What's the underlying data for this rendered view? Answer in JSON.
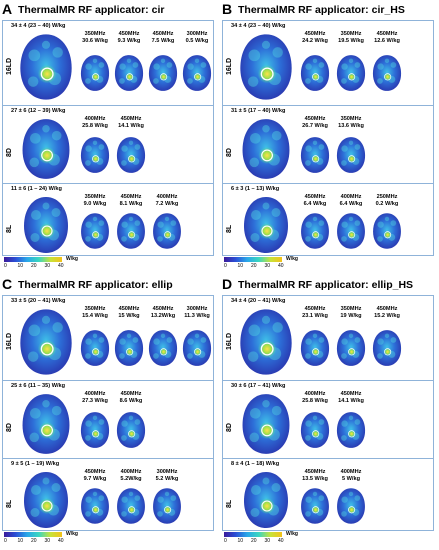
{
  "colorbar": {
    "ticks": [
      "0",
      "10",
      "20",
      "30",
      "40"
    ],
    "unit": "W/kg"
  },
  "panels": [
    {
      "letter": "A",
      "title": "ThermalMR RF applicator: cir",
      "rows": [
        {
          "label": "16LD",
          "main": "34 ± 4 (23 – 40) W/kg",
          "subs": [
            {
              "freq": "350MHz",
              "val": "30.6 W/kg"
            },
            {
              "freq": "450MHz",
              "val": "9.3 W/kg"
            },
            {
              "freq": "450MHz",
              "val": "7.5 W/kg"
            },
            {
              "freq": "300MHz",
              "val": "0.5 W/kg"
            }
          ]
        },
        {
          "label": "8D",
          "main": "27 ± 6 (12 – 39) W/kg",
          "subs": [
            {
              "freq": "400MHz",
              "val": "25.8 W/kg"
            },
            {
              "freq": "450MHz",
              "val": "14.1 W/kg"
            }
          ]
        },
        {
          "label": "8L",
          "main": "11 ± 6 (1 – 24) W/kg",
          "subs": [
            {
              "freq": "350MHz",
              "val": "9.0 W/kg"
            },
            {
              "freq": "450MHz",
              "val": "8.1 W/kg"
            },
            {
              "freq": "400MHz",
              "val": "7.2 W/kg"
            }
          ]
        }
      ]
    },
    {
      "letter": "B",
      "title": "ThermalMR RF applicator: cir_HS",
      "rows": [
        {
          "label": "16LD",
          "main": "34 ± 4 (23 – 40) W/kg",
          "subs": [
            {
              "freq": "450MHz",
              "val": "24.2 W/kg"
            },
            {
              "freq": "350MHz",
              "val": "19.5 W/kg"
            },
            {
              "freq": "450MHz",
              "val": "12.6 W/kg"
            }
          ]
        },
        {
          "label": "8D",
          "main": "31 ± 5 (17 – 40) W/kg",
          "subs": [
            {
              "freq": "450MHz",
              "val": "26.7 W/kg"
            },
            {
              "freq": "350MHz",
              "val": "13.6 W/kg"
            }
          ]
        },
        {
          "label": "8L",
          "main": "6 ± 3 (1 – 13) W/kg",
          "subs": [
            {
              "freq": "450MHz",
              "val": "6.4 W/kg"
            },
            {
              "freq": "400MHz",
              "val": "6.4 W/kg"
            },
            {
              "freq": "250MHz",
              "val": "0.2 W/kg"
            }
          ]
        }
      ]
    },
    {
      "letter": "C",
      "title": "ThermalMR RF applicator: ellip",
      "rows": [
        {
          "label": "16LD",
          "main": "33 ± 5 (20 – 41) W/kg",
          "subs": [
            {
              "freq": "350MHz",
              "val": "15.4 W/kg"
            },
            {
              "freq": "450MHz",
              "val": "15 W/kg"
            },
            {
              "freq": "450MHz",
              "val": "13.2W/kg"
            },
            {
              "freq": "300MHz",
              "val": "11.3 W/kg"
            }
          ]
        },
        {
          "label": "8D",
          "main": "25 ± 6 (11 – 35) W/kg",
          "subs": [
            {
              "freq": "400MHz",
              "val": "27.3 W/kg"
            },
            {
              "freq": "450MHz",
              "val": "8.6 W/kg"
            }
          ]
        },
        {
          "label": "8L",
          "main": "9 ± 5 (1 – 19) W/kg",
          "subs": [
            {
              "freq": "450MHz",
              "val": "9.7 W/kg"
            },
            {
              "freq": "400MHz",
              "val": "5.2W/kg"
            },
            {
              "freq": "300MHz",
              "val": "5.2 W/kg"
            }
          ]
        }
      ]
    },
    {
      "letter": "D",
      "title": "ThermalMR RF applicator: ellip_HS",
      "rows": [
        {
          "label": "16LD",
          "main": "34 ± 4 (20 – 41) W/kg",
          "subs": [
            {
              "freq": "450MHz",
              "val": "23.1 W/kg"
            },
            {
              "freq": "350MHz",
              "val": "19 W/kg"
            },
            {
              "freq": "450MHz",
              "val": "15.2 W/kg"
            }
          ]
        },
        {
          "label": "8D",
          "main": "30 ± 6 (17 – 41) W/kg",
          "subs": [
            {
              "freq": "400MHz",
              "val": "25.8 W/kg"
            },
            {
              "freq": "450MHz",
              "val": "14.1 W/kg"
            }
          ]
        },
        {
          "label": "8L",
          "main": "8 ± 4 (1 – 18) W/kg",
          "subs": [
            {
              "freq": "450MHz",
              "val": "13.5 W/kg"
            },
            {
              "freq": "400MHz",
              "val": "5 W/kg"
            }
          ]
        }
      ]
    }
  ]
}
